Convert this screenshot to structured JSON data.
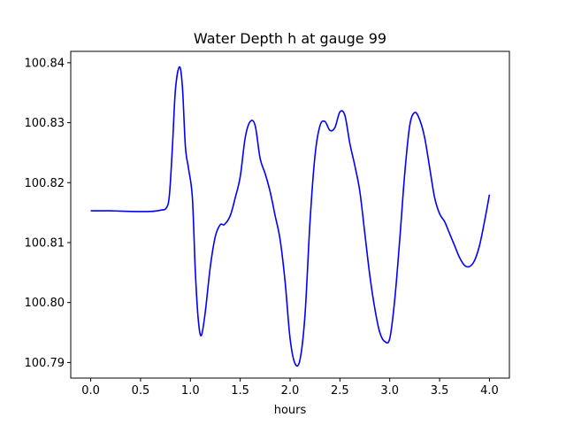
{
  "chart_data": {
    "type": "line",
    "title": "Water Depth h at gauge 99",
    "xlabel": "hours",
    "ylabel": "",
    "xlim": [
      -0.2,
      4.2
    ],
    "ylim": [
      100.7874,
      100.8419
    ],
    "x_ticks": [
      0.0,
      0.5,
      1.0,
      1.5,
      2.0,
      2.5,
      3.0,
      3.5,
      4.0
    ],
    "x_tick_labels": [
      "0.0",
      "0.5",
      "1.0",
      "1.5",
      "2.0",
      "2.5",
      "3.0",
      "3.5",
      "4.0"
    ],
    "y_ticks": [
      100.79,
      100.8,
      100.81,
      100.82,
      100.83,
      100.84
    ],
    "y_tick_labels": [
      "100.79",
      "100.80",
      "100.81",
      "100.82",
      "100.83",
      "100.84"
    ],
    "grid": false,
    "legend": "none",
    "series": [
      {
        "color": "#0000ff",
        "x": [
          0.0,
          0.2,
          0.4,
          0.6,
          0.7,
          0.76,
          0.79,
          0.82,
          0.85,
          0.89,
          0.92,
          0.95,
          0.98,
          1.02,
          1.05,
          1.08,
          1.11,
          1.15,
          1.2,
          1.25,
          1.3,
          1.34,
          1.4,
          1.45,
          1.5,
          1.55,
          1.6,
          1.65,
          1.7,
          1.75,
          1.8,
          1.85,
          1.9,
          1.95,
          2.0,
          2.05,
          2.1,
          2.15,
          2.2,
          2.25,
          2.3,
          2.35,
          2.4,
          2.45,
          2.5,
          2.55,
          2.6,
          2.65,
          2.7,
          2.75,
          2.8,
          2.85,
          2.9,
          2.95,
          3.0,
          3.05,
          3.1,
          3.15,
          3.2,
          3.25,
          3.3,
          3.35,
          3.4,
          3.45,
          3.5,
          3.55,
          3.6,
          3.65,
          3.7,
          3.75,
          3.8,
          3.85,
          3.9,
          3.95,
          4.0
        ],
        "y": [
          100.8153,
          100.8153,
          100.8152,
          100.8152,
          100.8154,
          100.8158,
          100.818,
          100.826,
          100.8355,
          100.8393,
          100.836,
          100.826,
          100.8225,
          100.8175,
          100.805,
          100.797,
          100.7945,
          100.7985,
          100.806,
          100.811,
          100.813,
          100.813,
          100.8145,
          100.8175,
          100.821,
          100.8275,
          100.8302,
          100.8295,
          100.824,
          100.8215,
          100.8185,
          100.8145,
          100.8105,
          100.8035,
          100.794,
          100.7898,
          100.7905,
          100.798,
          100.8135,
          100.8245,
          100.8295,
          100.8302,
          100.8287,
          100.8292,
          100.8318,
          100.8312,
          100.8265,
          100.8228,
          100.8185,
          100.8115,
          100.8045,
          100.799,
          100.795,
          100.7935,
          100.794,
          100.8005,
          100.8105,
          100.8215,
          100.8295,
          100.8317,
          100.8305,
          100.8275,
          100.8225,
          100.8175,
          100.8148,
          100.8135,
          100.8115,
          100.8095,
          100.8075,
          100.8062,
          100.806,
          100.807,
          100.8095,
          100.8135,
          100.818
        ]
      }
    ]
  }
}
